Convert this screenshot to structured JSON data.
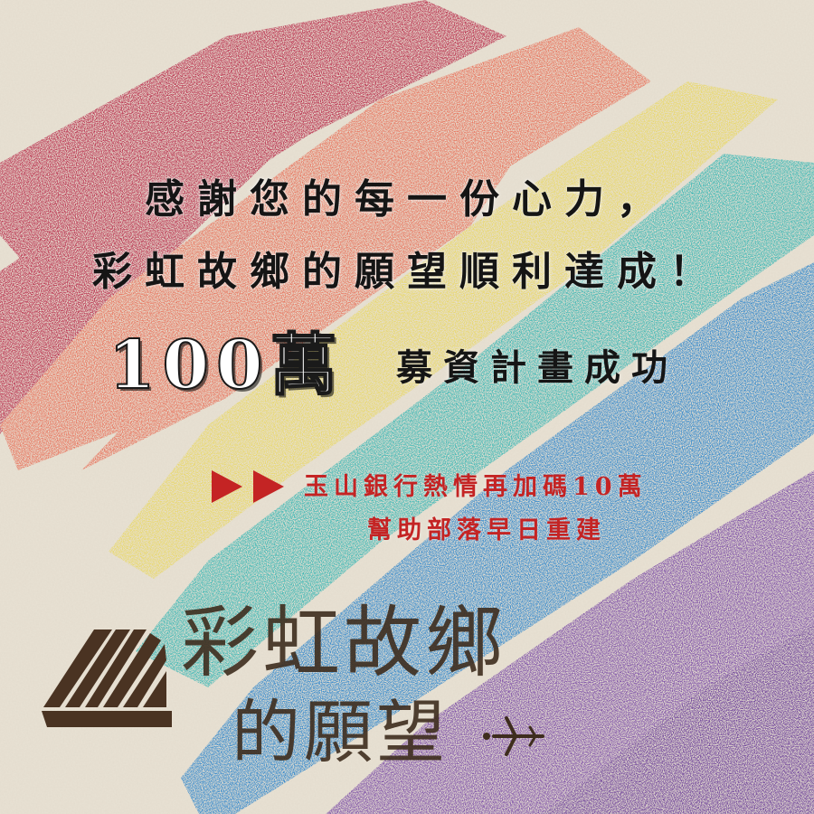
{
  "headline": {
    "line1": "感謝您的每一份心力，",
    "line2": "彩虹故鄉的願望順利達成！"
  },
  "goal": {
    "amount": "100萬",
    "label": "募資計畫成功"
  },
  "bonus": {
    "line1": "玉山銀行熱情再加碼10萬",
    "line2": "幫助部落早日重建",
    "arrow_icon": "double-play-arrow-icon",
    "color": "#c42424"
  },
  "brand": {
    "logo_line1": "彩虹故鄉",
    "logo_line2": "的願望",
    "logo_icon": "house-roof-logo-icon",
    "plane_icon": "airplane-icon",
    "color": "#3e2d1e"
  },
  "colors": {
    "background": "#e9e2d4",
    "stripes": [
      "#b82b4a",
      "#e8715a",
      "#e9d866",
      "#37b6b4",
      "#2f86cc",
      "#7a4ba6"
    ]
  }
}
